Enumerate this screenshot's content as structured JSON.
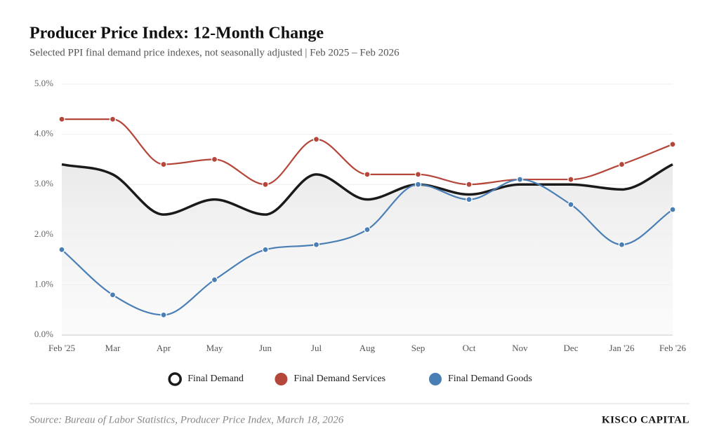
{
  "chart_data": {
    "type": "line",
    "title": "Producer Price Index: 12-Month Change",
    "subtitle": "Selected PPI final demand price indexes, not seasonally adjusted | Feb 2025 – Feb 2026",
    "categories": [
      "Feb '25",
      "Mar",
      "Apr",
      "May",
      "Jun",
      "Jul",
      "Aug",
      "Sep",
      "Oct",
      "Nov",
      "Dec",
      "Jan '26",
      "Feb '26"
    ],
    "series": [
      {
        "name": "Final Demand",
        "color": "#1a1a1a",
        "markers": false,
        "area": true,
        "values": [
          3.4,
          3.2,
          2.4,
          2.7,
          2.4,
          3.2,
          2.7,
          3.0,
          2.8,
          3.0,
          3.0,
          2.9,
          3.4
        ]
      },
      {
        "name": "Final Demand Services",
        "color": "#b5473a",
        "markers": true,
        "area": false,
        "values": [
          4.3,
          4.3,
          3.4,
          3.5,
          3.0,
          3.9,
          3.2,
          3.2,
          3.0,
          3.1,
          3.1,
          3.4,
          3.8
        ]
      },
      {
        "name": "Final Demand Goods",
        "color": "#4a7fb5",
        "markers": true,
        "area": false,
        "values": [
          1.7,
          0.8,
          0.4,
          1.1,
          1.7,
          1.8,
          2.1,
          3.0,
          2.7,
          3.1,
          2.6,
          1.8,
          2.5
        ]
      }
    ],
    "ylim": [
      0,
      5
    ],
    "yticks": [
      {
        "value": 0,
        "label": "0.0%"
      },
      {
        "value": 1,
        "label": "1.0%"
      },
      {
        "value": 2,
        "label": "2.0%"
      },
      {
        "value": 3,
        "label": "3.0%"
      },
      {
        "value": 4,
        "label": "4.0%"
      },
      {
        "value": 5,
        "label": "5.0%"
      }
    ],
    "grid": true,
    "legend": "bottom",
    "source": "Source: Bureau of Labor Statistics, Producer Price Index, March 18, 2026",
    "brand": "KISCO CAPITAL"
  }
}
